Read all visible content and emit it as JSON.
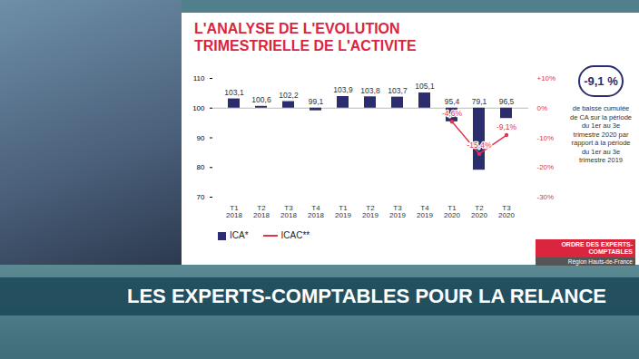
{
  "chart_data": {
    "type": "bar",
    "title": "L'ANALYSE DE L'EVOLUTION TRIMESTRIELLE DE L'ACTIVITE",
    "categories": [
      "T1\n2018",
      "T2\n2018",
      "T3\n2018",
      "T4\n2018",
      "T1\n2019",
      "T2\n2019",
      "T3\n2019",
      "T4\n2019",
      "T1\n2020",
      "T2\n2020",
      "T3\n2020"
    ],
    "base": 100,
    "series": [
      {
        "name": "ICA*",
        "type": "bar",
        "color": "#2b2d6e",
        "values": [
          103.1,
          100.6,
          102.2,
          99.1,
          103.9,
          103.8,
          103.7,
          105.1,
          95.4,
          79.1,
          96.5
        ],
        "value_labels": [
          "103,1",
          "100,6",
          "102,2",
          "99,1",
          "103,9",
          "103,8",
          "103,7",
          "105,1",
          "95,4",
          "79,1",
          "96,5"
        ]
      },
      {
        "name": "ICAC**",
        "type": "line",
        "axis": "y2",
        "color": "#e0344f",
        "marker": "circle",
        "values": [
          null,
          null,
          null,
          null,
          null,
          null,
          null,
          null,
          -4.6,
          -15.4,
          -9.1
        ],
        "value_labels": [
          null,
          null,
          null,
          null,
          null,
          null,
          null,
          null,
          "-4,6%",
          "-15,4%",
          "-9,1%"
        ]
      }
    ],
    "ylim": [
      70,
      110
    ],
    "yticks": [
      70,
      80,
      90,
      100,
      110
    ],
    "y2lim": [
      -30,
      10
    ],
    "y2ticks": [
      {
        "value": 10,
        "label": "+10%"
      },
      {
        "value": 0,
        "label": "0%"
      },
      {
        "value": -10,
        "label": "-10%"
      },
      {
        "value": -20,
        "label": "-20%"
      },
      {
        "value": -30,
        "label": "-30%"
      }
    ],
    "data_labels": true,
    "legend": "bottom",
    "annotations": [
      "-9,1 %",
      "de baisse cumulée de CA sur la période du 1er au 3e trimestre 2020 par rapport à la période du 1er au 3e trimestre 2019"
    ]
  },
  "page": {
    "logo": [
      "ORDRE DES EXPERTS-COMPTABLES",
      "Région Hauts-de-France"
    ],
    "banner": "LES EXPERTS-COMPTABLES POUR LA RELANCE"
  }
}
